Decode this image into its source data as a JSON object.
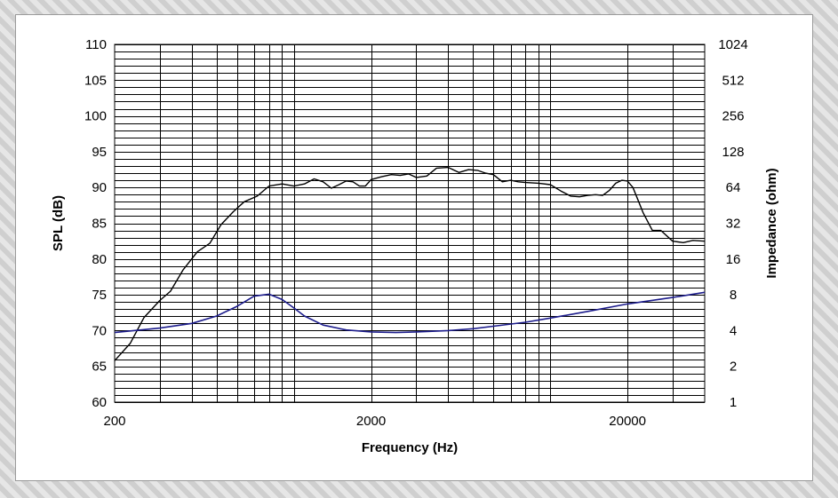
{
  "chart_data": {
    "type": "line",
    "title": "",
    "xlabel": "Frequency (Hz)",
    "ylabel": "SPL (dB)",
    "y2label": "Impedance (ohm)",
    "x_scale": "log",
    "xlim": [
      200,
      40000
    ],
    "ylim": [
      60,
      110
    ],
    "y2lim": [
      1,
      1024
    ],
    "y2_scale": "log2",
    "grid": true,
    "x_tick_labels": [
      "200",
      "2000",
      "20000"
    ],
    "x_ticks": [
      200,
      2000,
      20000
    ],
    "y_ticks": [
      60,
      65,
      70,
      75,
      80,
      85,
      90,
      95,
      100,
      105,
      110
    ],
    "y_tick_labels": [
      "60",
      "65",
      "70",
      "75",
      "80",
      "85",
      "90",
      "95",
      "100",
      "105",
      "110"
    ],
    "y2_ticks": [
      1,
      2,
      4,
      8,
      16,
      32,
      64,
      128,
      256,
      512,
      1024
    ],
    "y2_tick_labels": [
      "1",
      "2",
      "4",
      "8",
      "16",
      "32",
      "64",
      "128",
      "256",
      "512",
      "1024"
    ],
    "colors": {
      "spl": "#000000",
      "impedance": "#1c1c8c",
      "grid": "#000000"
    },
    "series": [
      {
        "axis": "left",
        "x": [
          200,
          230,
          260,
          300,
          330,
          370,
          420,
          470,
          520,
          580,
          640,
          720,
          800,
          900,
          1000,
          1100,
          1200,
          1300,
          1400,
          1500,
          1600,
          1700,
          1800,
          1900,
          2000,
          2200,
          2400,
          2600,
          2800,
          3000,
          3300,
          3600,
          4000,
          4400,
          4800,
          5200,
          5600,
          6000,
          6500,
          7000,
          7500,
          8000,
          9000,
          10000,
          11000,
          12000,
          13000,
          14000,
          15000,
          16000,
          17000,
          18000,
          19000,
          20000,
          21000,
          22000,
          23000,
          25000,
          27000,
          30000,
          33000,
          36000,
          40000
        ],
        "y": [
          65.8,
          68.2,
          71.8,
          74.2,
          75.5,
          78.5,
          81.0,
          82.2,
          84.8,
          86.6,
          88.0,
          88.8,
          90.2,
          90.5,
          90.2,
          90.5,
          91.2,
          90.8,
          89.9,
          90.4,
          90.9,
          90.8,
          90.2,
          90.2,
          91.1,
          91.5,
          91.8,
          91.7,
          91.9,
          91.4,
          91.6,
          92.7,
          92.8,
          92.1,
          92.5,
          92.4,
          92.0,
          91.8,
          90.8,
          91.0,
          90.8,
          90.7,
          90.6,
          90.4,
          89.5,
          88.8,
          88.7,
          88.9,
          89.0,
          88.9,
          89.6,
          90.6,
          91.0,
          90.9,
          90.0,
          88.2,
          86.5,
          84.0,
          84.0,
          82.5,
          82.3,
          82.6,
          82.5
        ],
        "name": ""
      },
      {
        "axis": "right",
        "x": [
          200,
          300,
          400,
          500,
          600,
          700,
          800,
          900,
          1000,
          1100,
          1300,
          1600,
          2000,
          2500,
          3000,
          4000,
          5000,
          6000,
          8000,
          10000,
          14000,
          20000,
          30000,
          40000
        ],
        "y": [
          3.85,
          4.2,
          4.6,
          5.3,
          6.4,
          7.8,
          8.1,
          7.3,
          6.2,
          5.3,
          4.45,
          4.05,
          3.9,
          3.85,
          3.9,
          4.0,
          4.15,
          4.35,
          4.7,
          5.1,
          5.8,
          6.7,
          7.6,
          8.4
        ],
        "name": ""
      }
    ]
  }
}
